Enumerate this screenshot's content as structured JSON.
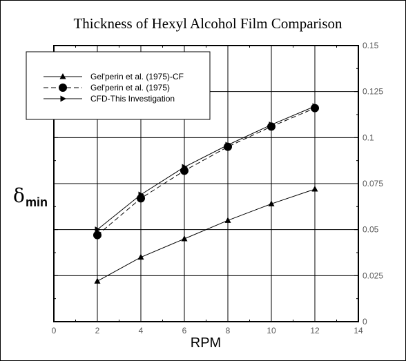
{
  "chart_data": {
    "type": "line",
    "title": "Thickness of Hexyl Alcohol Film Comparison",
    "xlabel": "RPM",
    "ylabel": "δ",
    "ylabel_subscript": "min",
    "xlim": [
      0,
      14
    ],
    "ylim": [
      0,
      0.15
    ],
    "xticks": [
      "0",
      "2",
      "4",
      "6",
      "8",
      "10",
      "12",
      "14"
    ],
    "yticks": [
      "0",
      "0.025",
      "0.05",
      "0.075",
      "0.1",
      "0.125",
      "0.15"
    ],
    "grid": true,
    "legend_position": "top-left",
    "series": [
      {
        "name": "Gel'perin et al. (1975)-CF",
        "marker": "triangle-up",
        "dash": "solid",
        "x": [
          2,
          4,
          6,
          8,
          10,
          12
        ],
        "y": [
          0.022,
          0.035,
          0.045,
          0.055,
          0.064,
          0.072
        ]
      },
      {
        "name": "Gel'perin et al. (1975)",
        "marker": "circle",
        "dash": "dashed",
        "x": [
          2,
          4,
          6,
          8,
          10,
          12
        ],
        "y": [
          0.047,
          0.067,
          0.082,
          0.095,
          0.106,
          0.116
        ]
      },
      {
        "name": "CFD-This Investigation",
        "marker": "triangle-right",
        "dash": "solid",
        "x": [
          2,
          4,
          6,
          8,
          10,
          12
        ],
        "y": [
          0.05,
          0.069,
          0.084,
          0.096,
          0.107,
          0.117
        ]
      }
    ]
  }
}
